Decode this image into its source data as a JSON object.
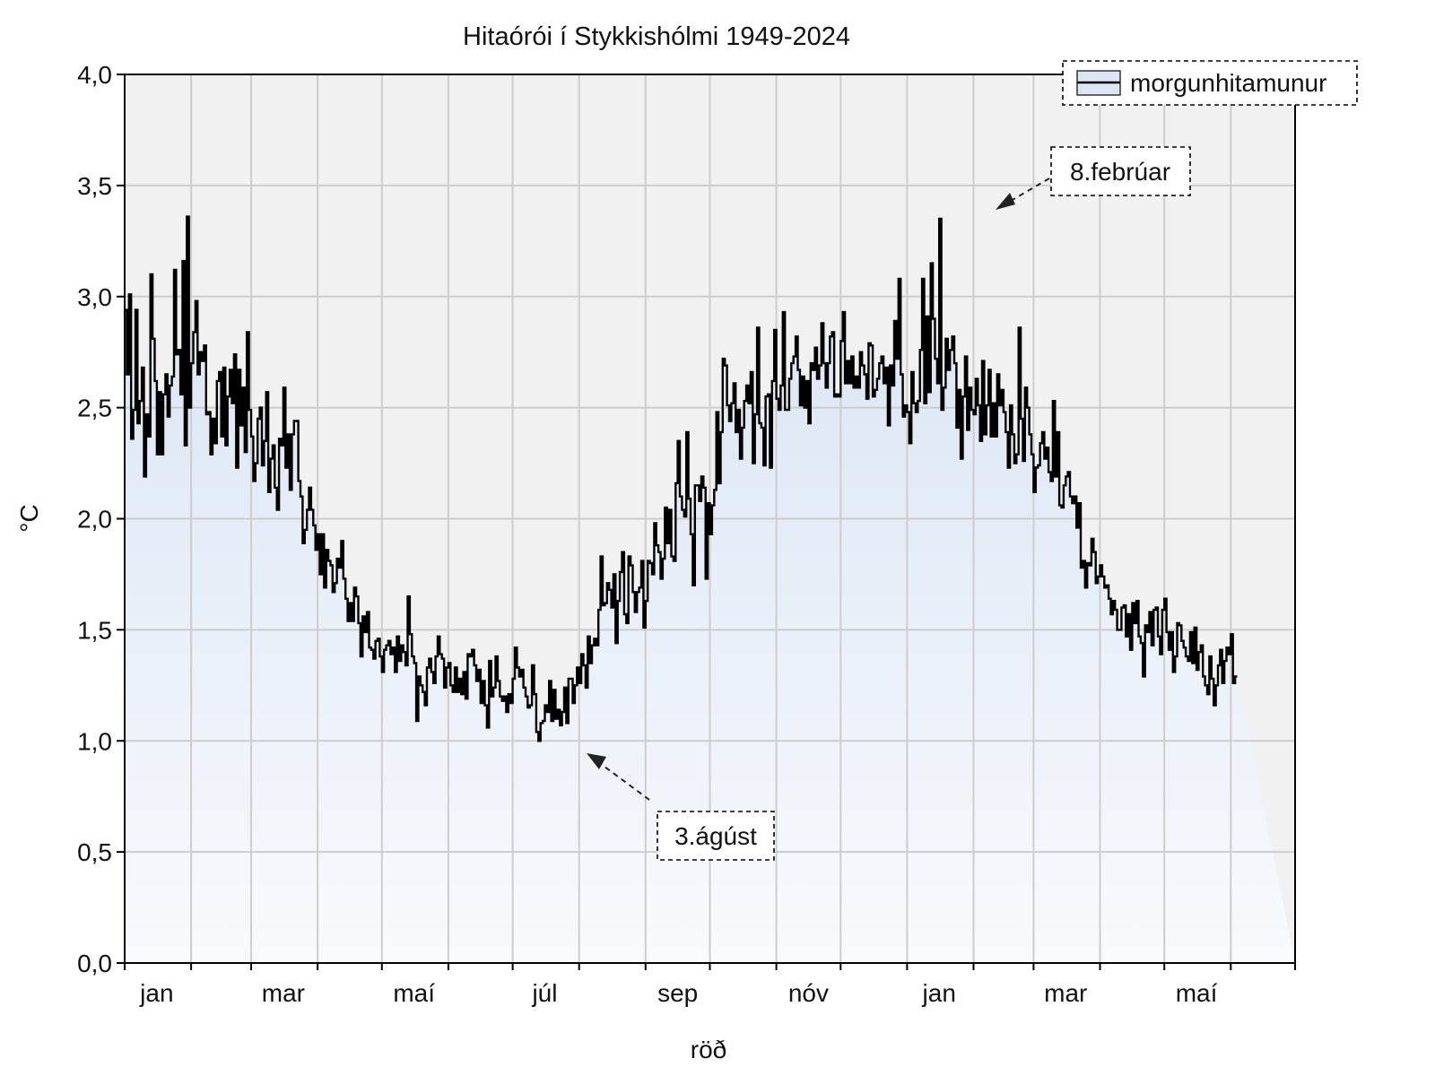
{
  "chart_data": {
    "type": "line",
    "title": "Hitaórói í Stykkishólmi 1949-2024",
    "xlabel": "röð",
    "ylabel": "°C",
    "ylim": [
      0,
      4
    ],
    "xlim": [
      1,
      547
    ],
    "grid": true,
    "legend": {
      "position": "top-right",
      "entries": [
        "morgunhitamunur"
      ]
    },
    "x_tick_labels": [
      {
        "label": "jan",
        "day": 16
      },
      {
        "label": "mar",
        "day": 75
      },
      {
        "label": "maí",
        "day": 136
      },
      {
        "label": "júl",
        "day": 197
      },
      {
        "label": "sep",
        "day": 259
      },
      {
        "label": "nóv",
        "day": 320
      },
      {
        "label": "jan",
        "day": 381
      },
      {
        "label": "mar",
        "day": 440
      },
      {
        "label": "maí",
        "day": 501
      }
    ],
    "y_tick_labels": [
      "0,0",
      "0,5",
      "1,0",
      "1,5",
      "2,0",
      "2,5",
      "3,0",
      "3,5",
      "4,0"
    ],
    "y_ticks": [
      0,
      0.5,
      1,
      1.5,
      2,
      2.5,
      3,
      3.5,
      4
    ],
    "x_grid_days": [
      1,
      32,
      60,
      91,
      121,
      152,
      182,
      213,
      244,
      274,
      305,
      335,
      366,
      397,
      425,
      456,
      486,
      517,
      547
    ],
    "annotations": [
      {
        "text": "8.febrúar",
        "x": 404,
        "y": 3.35
      },
      {
        "text": "3.ágúst",
        "x": 215,
        "y": 0.97
      }
    ],
    "series": [
      {
        "name": "morgunhitamunur",
        "values": [
          2.94,
          2.65,
          3.01,
          2.36,
          2.49,
          2.94,
          2.43,
          2.53,
          2.68,
          2.19,
          2.47,
          2.37,
          3.1,
          2.81,
          2.62,
          2.29,
          2.57,
          2.29,
          2.56,
          2.65,
          2.46,
          2.6,
          2.64,
          3.12,
          2.74,
          2.76,
          2.56,
          3.16,
          2.33,
          3.36,
          2.5,
          2.7,
          2.84,
          2.98,
          2.65,
          2.75,
          2.71,
          2.78,
          2.47,
          2.48,
          2.29,
          2.45,
          2.34,
          2.62,
          2.66,
          2.37,
          2.68,
          2.33,
          2.55,
          2.67,
          2.52,
          2.74,
          2.23,
          2.67,
          2.42,
          2.59,
          2.3,
          2.84,
          2.49,
          2.37,
          2.17,
          2.25,
          2.45,
          2.5,
          2.24,
          2.35,
          2.57,
          2.12,
          2.27,
          2.33,
          2.14,
          2.04,
          2.36,
          2.33,
          2.59,
          2.23,
          2.38,
          2.13,
          2.38,
          2.44,
          2.44,
          2.17,
          2.1,
          1.89,
          1.95,
          2.04,
          2.14,
          2.04,
          1.97,
          1.86,
          1.93,
          1.75,
          1.93,
          1.69,
          1.86,
          1.81,
          1.79,
          1.67,
          1.71,
          1.82,
          1.78,
          1.9,
          1.73,
          1.64,
          1.54,
          1.62,
          1.54,
          1.69,
          1.65,
          1.53,
          1.38,
          1.56,
          1.49,
          1.58,
          1.42,
          1.41,
          1.37,
          1.45,
          1.46,
          1.38,
          1.31,
          1.41,
          1.43,
          1.45,
          1.39,
          1.42,
          1.31,
          1.47,
          1.36,
          1.43,
          1.4,
          1.34,
          1.65,
          1.48,
          1.38,
          1.35,
          1.09,
          1.29,
          1.25,
          1.22,
          1.16,
          1.33,
          1.37,
          1.31,
          1.26,
          1.38,
          1.47,
          1.39,
          1.37,
          1.24,
          1.33,
          1.35,
          1.25,
          1.22,
          1.33,
          1.22,
          1.28,
          1.21,
          1.31,
          1.19,
          1.39,
          1.38,
          1.41,
          1.34,
          1.27,
          1.32,
          1.17,
          1.27,
          1.16,
          1.06,
          1.36,
          1.2,
          1.24,
          1.38,
          1.27,
          1.2,
          1.18,
          1.2,
          1.13,
          1.21,
          1.17,
          1.28,
          1.42,
          1.33,
          1.29,
          1.32,
          1.24,
          1.2,
          1.15,
          1.16,
          1.34,
          1.21,
          1.04,
          1.0,
          1.08,
          1.09,
          1.16,
          1.13,
          1.27,
          1.09,
          1.23,
          1.1,
          1.14,
          1.07,
          1.13,
          1.24,
          1.08,
          1.28,
          1.28,
          1.17,
          1.25,
          1.33,
          1.26,
          1.39,
          1.34,
          1.24,
          1.47,
          1.35,
          1.43,
          1.46,
          1.43,
          1.59,
          1.83,
          1.61,
          1.62,
          1.71,
          1.68,
          1.6,
          1.75,
          1.44,
          1.63,
          1.76,
          1.85,
          1.57,
          1.53,
          1.83,
          1.79,
          1.67,
          1.58,
          1.67,
          1.69,
          1.81,
          1.51,
          1.63,
          1.81,
          1.8,
          1.75,
          1.98,
          1.88,
          1.85,
          1.73,
          1.82,
          2.05,
          1.89,
          2.04,
          1.83,
          1.81,
          2.16,
          2.35,
          2.1,
          2.04,
          2.01,
          2.39,
          2.09,
          1.93,
          1.7,
          2.15,
          2.15,
          2.08,
          2.19,
          2.14,
          1.73,
          2.07,
          1.93,
          2.06,
          2.13,
          2.48,
          2.16,
          2.39,
          2.72,
          2.69,
          2.51,
          2.44,
          2.52,
          2.61,
          2.39,
          2.49,
          2.27,
          2.41,
          2.53,
          2.6,
          2.52,
          2.66,
          2.25,
          2.47,
          2.86,
          2.43,
          2.41,
          2.24,
          2.55,
          2.56,
          2.23,
          2.62,
          2.85,
          2.54,
          2.49,
          2.6,
          2.93,
          2.49,
          2.49,
          2.63,
          2.7,
          2.73,
          2.82,
          2.67,
          2.51,
          2.64,
          2.5,
          2.62,
          2.43,
          2.7,
          2.67,
          2.77,
          2.63,
          2.69,
          2.88,
          2.7,
          2.59,
          2.7,
          2.82,
          2.84,
          2.55,
          2.56,
          2.55,
          2.8,
          2.93,
          2.61,
          2.71,
          2.61,
          2.73,
          2.59,
          2.64,
          2.59,
          2.75,
          2.69,
          2.65,
          2.54,
          2.79,
          2.78,
          2.55,
          2.58,
          2.63,
          2.7,
          2.73,
          2.61,
          2.68,
          2.42,
          2.69,
          2.6,
          2.89,
          2.72,
          3.08,
          2.65,
          2.46,
          2.51,
          2.48,
          2.34,
          2.66,
          2.52,
          2.48,
          2.53,
          2.76,
          3.08,
          2.52,
          2.91,
          2.57,
          3.15,
          2.9,
          2.72,
          2.61,
          3.35,
          2.49,
          2.59,
          2.81,
          2.67,
          2.76,
          2.82,
          2.7,
          2.41,
          2.58,
          2.27,
          2.55,
          2.73,
          2.4,
          2.59,
          2.49,
          2.47,
          2.63,
          2.51,
          2.35,
          2.71,
          2.38,
          2.51,
          2.67,
          2.37,
          2.52,
          2.37,
          2.65,
          2.51,
          2.58,
          2.48,
          2.39,
          2.23,
          2.51,
          2.38,
          2.25,
          2.29,
          2.86,
          2.45,
          2.26,
          2.59,
          2.5,
          2.38,
          2.29,
          2.12,
          2.23,
          2.24,
          2.34,
          2.39,
          2.27,
          2.32,
          2.21,
          2.17,
          2.53,
          2.19,
          2.39,
          2.06,
          2.05,
          2.15,
          2.19,
          2.21,
          2.1,
          2.07,
          2.1,
          1.96,
          2.07,
          1.78,
          1.81,
          1.69,
          1.8,
          1.79,
          1.91,
          1.85,
          1.71,
          1.74,
          1.79,
          1.74,
          1.69,
          1.7,
          1.64,
          1.57,
          1.63,
          1.59,
          1.5,
          1.5,
          1.6,
          1.61,
          1.47,
          1.57,
          1.41,
          1.62,
          1.53,
          1.63,
          1.47,
          1.44,
          1.29,
          1.52,
          1.49,
          1.58,
          1.43,
          1.59,
          1.6,
          1.47,
          1.39,
          1.59,
          1.64,
          1.49,
          1.41,
          1.49,
          1.31,
          1.38,
          1.53,
          1.52,
          1.45,
          1.42,
          1.38,
          1.36,
          1.49,
          1.35,
          1.51,
          1.32,
          1.4,
          1.43,
          1.29,
          1.25,
          1.21,
          1.38,
          1.28,
          1.16,
          1.25,
          1.34,
          1.41,
          1.26,
          1.36,
          1.42,
          1.39,
          1.48,
          1.26,
          1.29
        ]
      }
    ]
  }
}
